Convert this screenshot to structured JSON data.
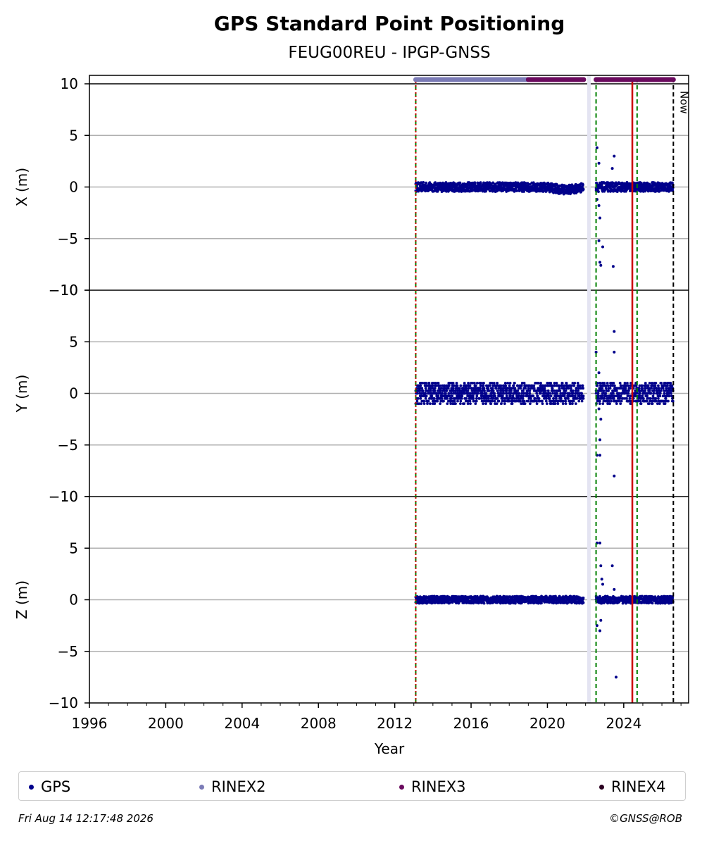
{
  "chart_data": {
    "type": "scatter",
    "title": "GPS Standard Point Positioning",
    "subtitle": "FEUG00REU - IPGP-GNSS",
    "xlabel": "Year",
    "xlim": [
      1996.0,
      2027.4
    ],
    "x_ticks": [
      "1996",
      "2000",
      "2004",
      "2008",
      "2012",
      "2016",
      "2020",
      "2024"
    ],
    "x_tick_values": [
      1996,
      2000,
      2004,
      2008,
      2012,
      2016,
      2020,
      2024
    ],
    "y_ticks": [
      10,
      5,
      0,
      -5,
      -10
    ],
    "y_tick_labels": [
      "10",
      "5",
      "0",
      "−5",
      "−10"
    ],
    "grid": "horizontal",
    "panels": [
      {
        "ylabel": "X (m)",
        "ylim": [
          -10,
          10
        ],
        "band_start": 2013.1,
        "band_end": 2026.6,
        "band_amp": 0.45,
        "outliers": [
          [
            2022.6,
            3.8
          ],
          [
            2022.7,
            2.3
          ],
          [
            2022.7,
            -1.8
          ],
          [
            2022.75,
            -3.0
          ],
          [
            2022.7,
            -5.2
          ],
          [
            2022.75,
            -7.3
          ],
          [
            2022.8,
            -7.6
          ],
          [
            2022.9,
            -5.8
          ],
          [
            2023.5,
            3.0
          ],
          [
            2023.45,
            -7.7
          ],
          [
            2022.6,
            -1.2
          ],
          [
            2023.4,
            1.8
          ]
        ]
      },
      {
        "ylabel": "Y (m)",
        "ylim": [
          -10,
          10
        ],
        "band_start": 2013.1,
        "band_end": 2026.6,
        "band_amp": 1.0,
        "outliers": [
          [
            2022.55,
            4.0
          ],
          [
            2022.7,
            2.0
          ],
          [
            2022.8,
            -2.5
          ],
          [
            2022.75,
            -4.5
          ],
          [
            2022.6,
            -6.0
          ],
          [
            2022.75,
            -6.0
          ],
          [
            2023.5,
            6.0
          ],
          [
            2023.5,
            4.0
          ],
          [
            2023.5,
            -8.0
          ],
          [
            2022.7,
            -1.5
          ]
        ]
      },
      {
        "ylabel": "Z (m)",
        "ylim": [
          -10,
          10
        ],
        "band_start": 2013.1,
        "band_end": 2026.6,
        "band_amp": 0.35,
        "outliers": [
          [
            2022.6,
            5.5
          ],
          [
            2022.75,
            5.5
          ],
          [
            2022.8,
            3.3
          ],
          [
            2022.85,
            2.0
          ],
          [
            2022.9,
            1.5
          ],
          [
            2023.4,
            3.3
          ],
          [
            2022.6,
            -2.5
          ],
          [
            2022.75,
            -3.0
          ],
          [
            2022.8,
            -2.0
          ],
          [
            2023.6,
            -7.5
          ],
          [
            2023.5,
            1.0
          ]
        ]
      }
    ],
    "data_gaps": [
      [
        2021.9,
        2022.55
      ]
    ],
    "rinex_bars": [
      {
        "name": "RINEX2",
        "color": "#7b7bb6",
        "start": 2013.1,
        "end": 2019.0
      },
      {
        "name": "RINEX3",
        "color": "#6a0a5e",
        "start": 2019.0,
        "end": 2021.9
      },
      {
        "name": "RINEX3",
        "color": "#6a0a5e",
        "start": 2022.55,
        "end": 2026.6
      }
    ],
    "vertical_lines": [
      {
        "x": 2013.1,
        "color": "#008000",
        "style": "dashed"
      },
      {
        "x": 2013.1,
        "color": "#cc0000",
        "style": "dotted"
      },
      {
        "x": 2022.55,
        "color": "#008000",
        "style": "dashed"
      },
      {
        "x": 2024.45,
        "color": "#cc0000",
        "style": "solid"
      },
      {
        "x": 2024.7,
        "color": "#008000",
        "style": "dashed"
      },
      {
        "x": 2026.6,
        "color": "#000000",
        "style": "dashed",
        "label": "Now"
      }
    ],
    "legend": [
      {
        "name": "GPS",
        "color": "#00008b"
      },
      {
        "name": "RINEX2",
        "color": "#7b7bb6"
      },
      {
        "name": "RINEX3",
        "color": "#6a0a5e"
      },
      {
        "name": "RINEX4",
        "color": "#2a0020"
      }
    ],
    "legend_position": "bottom"
  },
  "footer": {
    "timestamp": "Fri Aug 14 12:17:48 2026",
    "credit": "©GNSS@ROB"
  }
}
